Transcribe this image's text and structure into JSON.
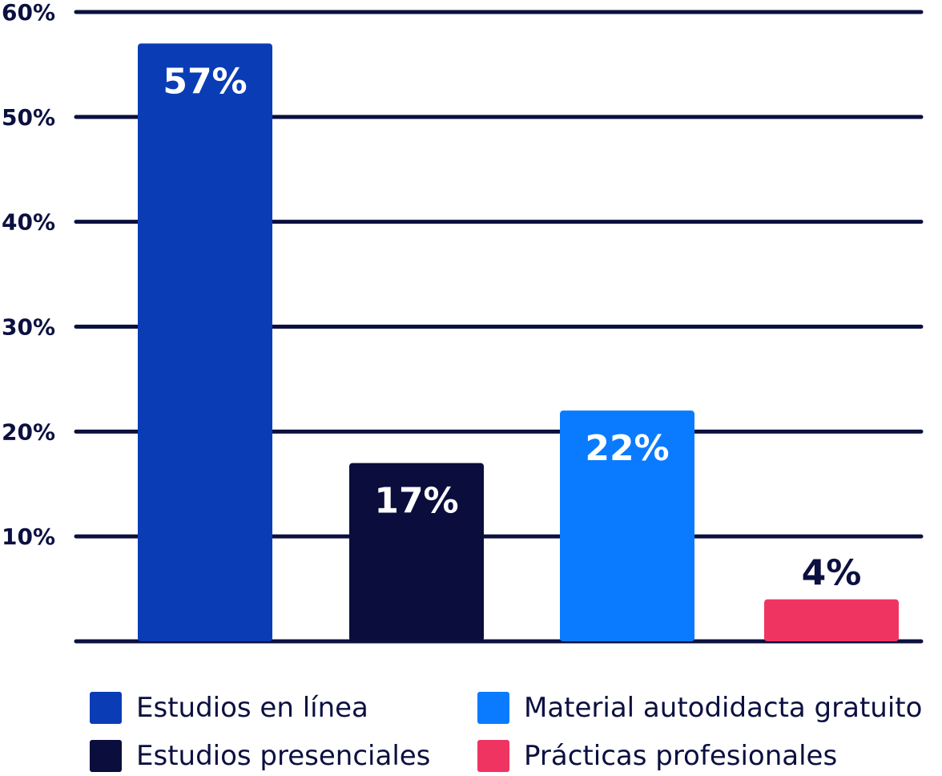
{
  "chart_data": {
    "type": "bar",
    "categories": [
      "Estudios en línea",
      "Estudios presenciales",
      "Material autodidacta gratuito",
      "Prácticas profesionales"
    ],
    "values": [
      57,
      17,
      22,
      4
    ],
    "value_labels": [
      "57%",
      "17%",
      "22%",
      "4%"
    ],
    "colors": [
      "#0a3db5",
      "#0b0d3d",
      "#0a7bff",
      "#f03461"
    ],
    "label_colors": [
      "#ffffff",
      "#ffffff",
      "#ffffff",
      "#0b1040"
    ],
    "ylim": [
      0,
      60
    ],
    "yticks": [
      10,
      20,
      30,
      40,
      50,
      60
    ],
    "ytick_labels": [
      "10%",
      "20%",
      "30%",
      "40%",
      "50%",
      "60%"
    ],
    "grid": true,
    "legend_position": "bottom",
    "legend": [
      {
        "label": "Estudios en línea",
        "color": "#0a3db5"
      },
      {
        "label": "Material autodidacta gratuito",
        "color": "#0a7bff"
      },
      {
        "label": "Estudios presenciales",
        "color": "#0b0d3d"
      },
      {
        "label": "Prácticas profesionales",
        "color": "#f03461"
      }
    ]
  }
}
